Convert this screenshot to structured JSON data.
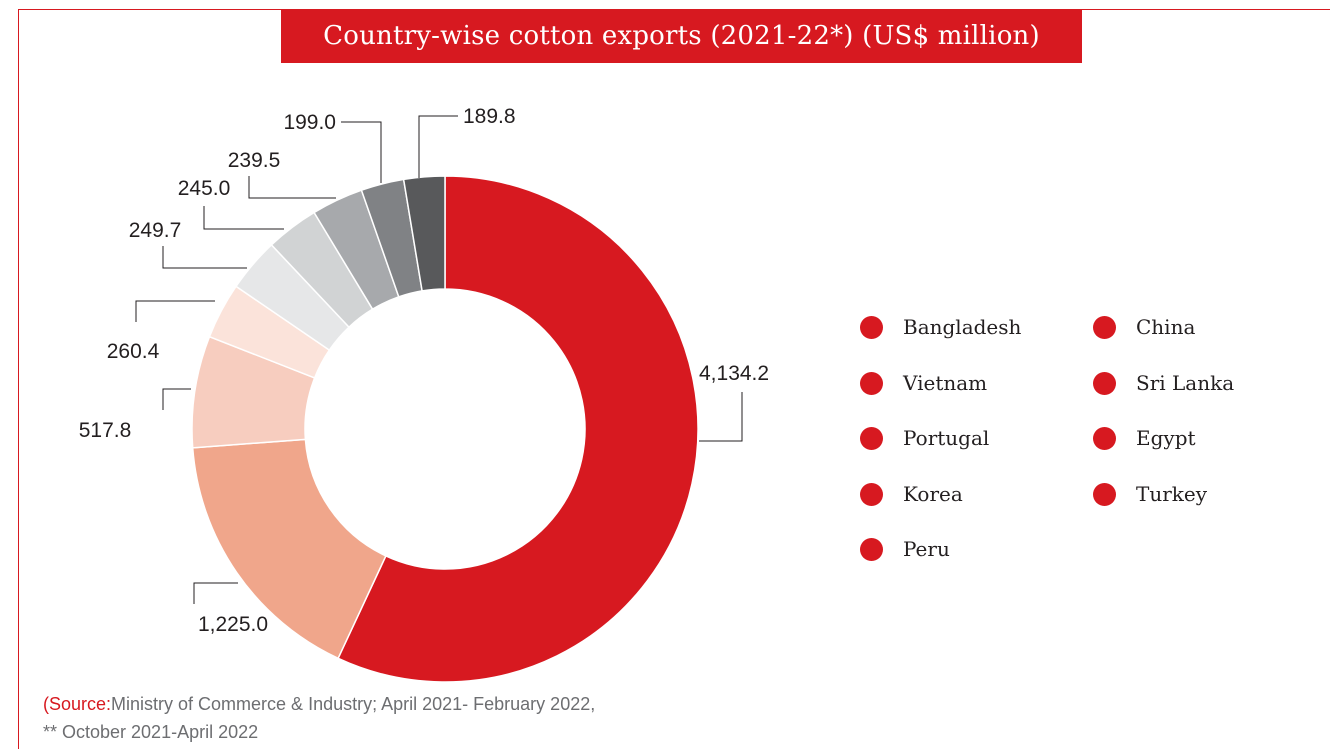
{
  "title": "Country-wise cotton exports (2021-22*) (US$ million)",
  "chart_data": {
    "type": "pie",
    "title": "Country-wise cotton exports (2021-22*) (US$ million)",
    "categories": [
      "Bangladesh",
      "China",
      "Vietnam",
      "Sri Lanka",
      "Portugal",
      "Egypt",
      "Korea",
      "Turkey",
      "Peru"
    ],
    "values": [
      4134.2,
      1225.0,
      517.8,
      260.4,
      249.7,
      245.0,
      239.5,
      199.0,
      189.8
    ],
    "value_labels": [
      "4,134.2",
      "1,225.0",
      "517.8",
      "260.4",
      "249.7",
      "245.0",
      "239.5",
      "199.0",
      "189.8"
    ],
    "colors": [
      "#d71920",
      "#f0a68b",
      "#f7cdbf",
      "#fbe3da",
      "#e6e7e8",
      "#d1d3d4",
      "#a7a9ac",
      "#808285",
      "#58595b"
    ],
    "legend_position": "right",
    "legend_color": "#d71920"
  },
  "legend": [
    "Bangladesh",
    "China",
    "Vietnam",
    "Sri Lanka",
    "Portugal",
    "Egypt",
    "Korea",
    "Turkey",
    "Peru"
  ],
  "source": {
    "key": "(Source:",
    "text": "Ministry of Commerce & Industry; April 2021- February 2022,",
    "note": "** October 2021-April 2022"
  }
}
